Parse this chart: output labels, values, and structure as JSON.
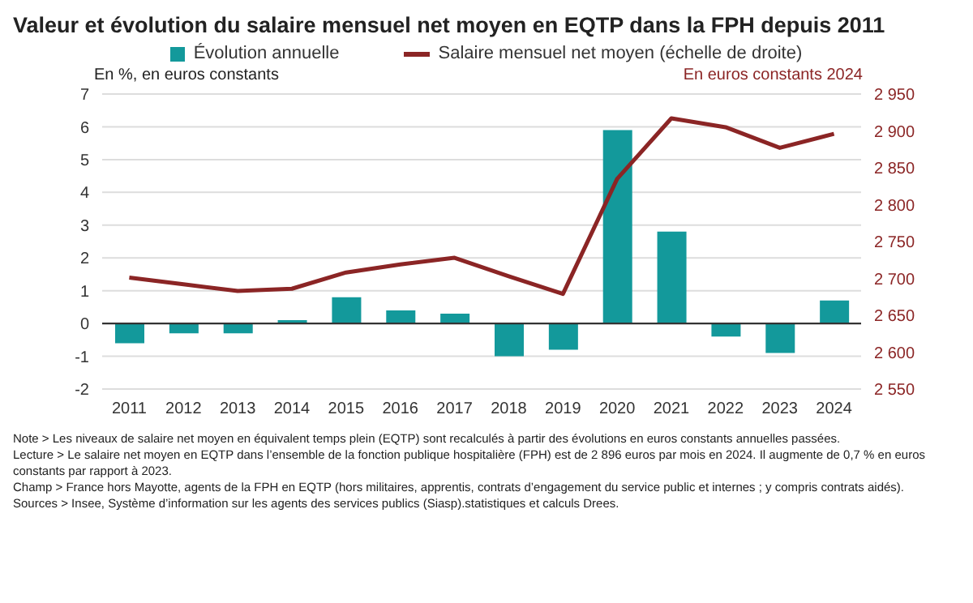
{
  "chart_data": {
    "type": "bar",
    "title": "Valeur et évolution du salaire mensuel net moyen en EQTP dans la FPH depuis 2011",
    "ylabel": "En %, en euros constants",
    "y2label": "En euros constants 2024",
    "categories": [
      "2011",
      "2012",
      "2013",
      "2014",
      "2015",
      "2016",
      "2017",
      "2018",
      "2019",
      "2020",
      "2021",
      "2022",
      "2023",
      "2024"
    ],
    "series": [
      {
        "name": "Évolution annuelle",
        "color": "#13999b",
        "values": [
          -0.6,
          -0.3,
          -0.3,
          0.1,
          0.8,
          0.4,
          0.3,
          -1.0,
          -0.8,
          5.9,
          2.8,
          -0.4,
          -0.9,
          0.7
        ]
      },
      {
        "name": "Salaire mensuel net moyen (échelle de droite)",
        "type": "line",
        "axis": "y2",
        "color": "#8b2525",
        "values": [
          2701,
          2692,
          2683,
          2686,
          2708,
          2719,
          2728,
          2703,
          2679,
          2835,
          2917,
          2905,
          2877,
          2896
        ]
      }
    ],
    "ylim": [
      -2,
      7
    ],
    "yticks": [
      -2,
      -1,
      0,
      1,
      2,
      3,
      4,
      5,
      6,
      7
    ],
    "y2lim": [
      2550,
      2950
    ],
    "y2ticks": [
      {
        "value": 2550,
        "label": "2 550"
      },
      {
        "value": 2600,
        "label": "2 600"
      },
      {
        "value": 2650,
        "label": "2 650"
      },
      {
        "value": 2700,
        "label": "2 700"
      },
      {
        "value": 2750,
        "label": "2 750"
      },
      {
        "value": 2800,
        "label": "2 800"
      },
      {
        "value": 2850,
        "label": "2 850"
      },
      {
        "value": 2900,
        "label": "2 900"
      },
      {
        "value": 2950,
        "label": "2 950"
      }
    ],
    "ref_lines": [
      {
        "axis": "y",
        "value": 0,
        "color": "#333333"
      }
    ],
    "grid": "y",
    "legend": "top",
    "marker": "none",
    "line_style": "solid",
    "annotations": [
      "Note > Les niveaux de salaire net moyen en équivalent temps plein (EQTP) sont recalculés à partir des évolutions en euros constants annuelles passées.",
      "Lecture > Le salaire net moyen en EQTP dans l’ensemble de la fonction publique hospitalière (FPH) est de 2 896 euros par mois en 2024. Il augmente de 0,7 % en euros constants par rapport à 2023.",
      "Champ > France hors Mayotte, agents de la FPH en EQTP (hors militaires, apprentis, contrats d’engagement du service public et internes ; y compris contrats aidés).",
      "Sources > Insee, Système d’information sur les agents des services publics (Siasp).statistiques et calculs Drees."
    ]
  }
}
